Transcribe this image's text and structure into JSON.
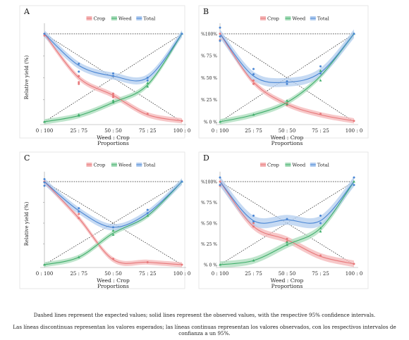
{
  "caption": {
    "english": "Dashed lines represent the expected values; solid lines represent the observed values, with the respective 95% confidence intervals.",
    "spanish": "Las líneas discontinuas representan los valores esperados; las líneas continuas representan los valores observados, con los respectivos intervalos de confianza a un 95%."
  },
  "colors": {
    "crop": "#e8787a",
    "weed": "#3fae6a",
    "total": "#4a86d4",
    "crop_band": "#f4b6b7",
    "weed_band": "#a9dcbb",
    "total_band": "#b3cdef"
  },
  "chart_data": [
    {
      "panel": "A",
      "type": "line",
      "categories": [
        "0 : 100",
        "25 : 75",
        "50 : 50",
        "75 : 25",
        "100 : 0"
      ],
      "xlabel": "Weed : Crop",
      "xlabel2": "Proportions",
      "ylabel": "Relative yield (%)",
      "y_tick_labels": [],
      "ylim": [
        0,
        1
      ],
      "legend": [
        "Crop",
        "Weed",
        "Total"
      ],
      "legend_position": "top",
      "series": [
        {
          "name": "Crop",
          "values": [
            1.0,
            0.5,
            0.3,
            0.08,
            0.01
          ],
          "band": 0.03,
          "points": [
            [
              0,
              1.0
            ],
            [
              0,
              0.98
            ],
            [
              1,
              0.52
            ],
            [
              1,
              0.45
            ],
            [
              1,
              0.43
            ],
            [
              2,
              0.32
            ],
            [
              2,
              0.3
            ],
            [
              2,
              0.28
            ],
            [
              3,
              0.09
            ],
            [
              4,
              0.01
            ]
          ]
        },
        {
          "name": "Weed",
          "values": [
            0.0,
            0.07,
            0.22,
            0.42,
            1.0
          ],
          "band": 0.03,
          "points": [
            [
              0,
              0.0
            ],
            [
              1,
              0.07
            ],
            [
              1,
              0.08
            ],
            [
              2,
              0.22
            ],
            [
              2,
              0.24
            ],
            [
              3,
              0.4
            ],
            [
              3,
              0.44
            ],
            [
              4,
              1.0
            ]
          ]
        },
        {
          "name": "Total",
          "values": [
            1.0,
            0.64,
            0.52,
            0.5,
            1.0
          ],
          "band": 0.04,
          "points": [
            [
              0,
              1.0
            ],
            [
              1,
              0.66
            ],
            [
              1,
              0.57
            ],
            [
              2,
              0.55
            ],
            [
              2,
              0.52
            ],
            [
              3,
              0.5
            ],
            [
              3,
              0.47
            ],
            [
              4,
              1.0
            ]
          ]
        }
      ],
      "expected": {
        "crop": [
          1,
          0
        ],
        "weed": [
          0,
          1
        ],
        "total": [
          1,
          1
        ]
      }
    },
    {
      "panel": "B",
      "type": "line",
      "categories": [
        "0 : 100",
        "25 : 75",
        "50 : 50",
        "75 : 25",
        "100 : 0"
      ],
      "xlabel": "Weed : Crop",
      "xlabel2": "Proportions",
      "ylabel": "",
      "y_tick_labels": [
        "% 0 %",
        "% 25 %",
        "% 50 %",
        "% 75 %",
        "%100%"
      ],
      "ylim": [
        0,
        1
      ],
      "legend": [
        "Crop",
        "Weed",
        "Total"
      ],
      "legend_position": "top",
      "series": [
        {
          "name": "Crop",
          "values": [
            1.0,
            0.45,
            0.2,
            0.08,
            0.01
          ],
          "band": 0.03,
          "points": [
            [
              0,
              1.0
            ],
            [
              0,
              0.93
            ],
            [
              1,
              0.47
            ],
            [
              1,
              0.43
            ],
            [
              2,
              0.21
            ],
            [
              2,
              0.19
            ],
            [
              3,
              0.09
            ],
            [
              4,
              0.01
            ]
          ]
        },
        {
          "name": "Weed",
          "values": [
            0.0,
            0.08,
            0.22,
            0.52,
            1.0
          ],
          "band": 0.03,
          "points": [
            [
              0,
              0.0
            ],
            [
              1,
              0.08
            ],
            [
              2,
              0.24
            ],
            [
              2,
              0.2
            ],
            [
              3,
              0.58
            ],
            [
              3,
              0.47
            ],
            [
              4,
              1.0
            ]
          ]
        },
        {
          "name": "Total",
          "values": [
            1.0,
            0.52,
            0.45,
            0.56,
            1.0
          ],
          "band": 0.05,
          "points": [
            [
              0,
              1.07
            ],
            [
              0,
              0.97
            ],
            [
              0,
              0.92
            ],
            [
              1,
              0.6
            ],
            [
              1,
              0.54
            ],
            [
              2,
              0.46
            ],
            [
              2,
              0.43
            ],
            [
              3,
              0.63
            ],
            [
              3,
              0.55
            ],
            [
              4,
              1.0
            ]
          ]
        }
      ],
      "expected": {
        "crop": [
          1,
          0
        ],
        "weed": [
          0,
          1
        ],
        "total": [
          1,
          1
        ]
      }
    },
    {
      "panel": "C",
      "type": "line",
      "categories": [
        "0 : 100",
        "25 : 75",
        "50 : 50",
        "75 : 25",
        "100 : 0"
      ],
      "xlabel": "Weed : Crop",
      "xlabel2": "Proportions",
      "ylabel": "Relative yield (%)",
      "y_tick_labels": [],
      "ylim": [
        0,
        1
      ],
      "legend": [
        "Crop",
        "Weed",
        "Total"
      ],
      "legend_position": "top",
      "series": [
        {
          "name": "Crop",
          "values": [
            1.0,
            0.56,
            0.06,
            0.03,
            0.0
          ],
          "band": 0.03,
          "points": [
            [
              0,
              1.0
            ],
            [
              1,
              0.61
            ],
            [
              1,
              0.56
            ],
            [
              2,
              0.07
            ],
            [
              3,
              0.03
            ],
            [
              4,
              0.0
            ]
          ]
        },
        {
          "name": "Weed",
          "values": [
            0.0,
            0.09,
            0.38,
            0.59,
            1.0
          ],
          "band": 0.03,
          "points": [
            [
              0,
              0.0
            ],
            [
              1,
              0.09
            ],
            [
              2,
              0.36
            ],
            [
              2,
              0.41
            ],
            [
              3,
              0.59
            ],
            [
              4,
              1.0
            ]
          ]
        },
        {
          "name": "Total",
          "values": [
            1.0,
            0.65,
            0.45,
            0.62,
            1.0
          ],
          "band": 0.04,
          "points": [
            [
              0,
              1.03
            ],
            [
              0,
              0.99
            ],
            [
              0,
              0.95
            ],
            [
              1,
              0.68
            ],
            [
              1,
              0.64
            ],
            [
              2,
              0.45
            ],
            [
              3,
              0.66
            ],
            [
              3,
              0.62
            ],
            [
              4,
              1.0
            ]
          ]
        }
      ],
      "expected": {
        "crop": [
          1,
          0
        ],
        "weed": [
          0,
          1
        ],
        "total": [
          1,
          1
        ]
      }
    },
    {
      "panel": "D",
      "type": "line",
      "categories": [
        "0 : 100",
        "25 : 75",
        "50 : 50",
        "75 : 25",
        "100 : 0"
      ],
      "xlabel": "Weed : Crop",
      "xlabel2": "Proportions",
      "ylabel": "",
      "y_tick_labels": [
        "% 0 %",
        "% 25 %",
        "% 50 %",
        "% 75 %",
        "%100%"
      ],
      "ylim": [
        0,
        1
      ],
      "legend": [
        "Crop",
        "Weed",
        "Total"
      ],
      "legend_position": "top",
      "series": [
        {
          "name": "Crop",
          "values": [
            1.0,
            0.46,
            0.3,
            0.1,
            0.01
          ],
          "band": 0.04,
          "points": [
            [
              0,
              1.0
            ],
            [
              0,
              0.95
            ],
            [
              1,
              0.5
            ],
            [
              1,
              0.46
            ],
            [
              2,
              0.31
            ],
            [
              2,
              0.28
            ],
            [
              3,
              0.11
            ],
            [
              4,
              0.01
            ]
          ]
        },
        {
          "name": "Weed",
          "values": [
            0.0,
            0.05,
            0.24,
            0.44,
            1.0
          ],
          "band": 0.04,
          "points": [
            [
              0,
              0.0
            ],
            [
              1,
              0.05
            ],
            [
              2,
              0.24
            ],
            [
              2,
              0.27
            ],
            [
              3,
              0.44
            ],
            [
              3,
              0.4
            ],
            [
              4,
              1.0
            ]
          ]
        },
        {
          "name": "Total",
          "values": [
            1.0,
            0.53,
            0.54,
            0.53,
            1.0
          ],
          "band": 0.06,
          "points": [
            [
              0,
              1.05
            ],
            [
              0,
              0.96
            ],
            [
              1,
              0.59
            ],
            [
              1,
              0.52
            ],
            [
              2,
              0.55
            ],
            [
              3,
              0.59
            ],
            [
              3,
              0.5
            ],
            [
              4,
              1.05
            ],
            [
              4,
              0.96
            ]
          ]
        }
      ],
      "expected": {
        "crop": [
          1,
          0
        ],
        "weed": [
          0,
          1
        ],
        "total": [
          1,
          1
        ]
      }
    }
  ]
}
